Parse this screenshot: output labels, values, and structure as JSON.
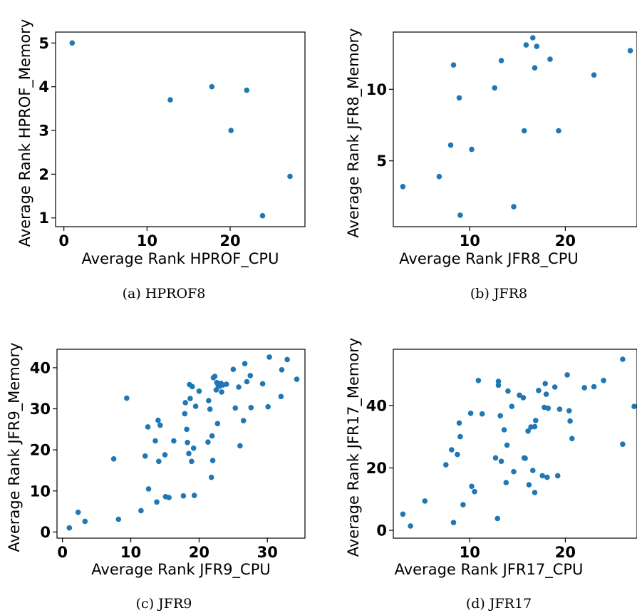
{
  "chart_data": [
    {
      "type": "scatter",
      "xlabel": "Average Rank HPROF_CPU",
      "ylabel": "Average Rank HPROF_Memory",
      "caption": "(a) HPROF8",
      "xlim": [
        -1,
        29
      ],
      "ylim": [
        0.8,
        5.25
      ],
      "xticks": [
        0,
        10,
        20
      ],
      "yticks": [
        1,
        2,
        3,
        4,
        5
      ],
      "color": "#1f77b4",
      "points": [
        [
          1,
          5
        ],
        [
          12.8,
          3.7
        ],
        [
          17.8,
          4.0
        ],
        [
          22,
          3.92
        ],
        [
          20.1,
          3.0
        ],
        [
          27.2,
          1.95
        ],
        [
          23.9,
          1.05
        ]
      ]
    },
    {
      "type": "scatter",
      "xlabel": "Average Rank JFR8_CPU",
      "ylabel": "Average Rank JFR8_Memory",
      "caption": "(b) JFR8",
      "xlim": [
        2,
        27.5
      ],
      "ylim": [
        0.4,
        14
      ],
      "xticks": [
        10,
        20
      ],
      "yticks": [
        5,
        10
      ],
      "color": "#1f77b4",
      "points": [
        [
          3,
          3.2
        ],
        [
          6.8,
          3.9
        ],
        [
          8,
          6.1
        ],
        [
          8.3,
          11.7
        ],
        [
          8.9,
          9.4
        ],
        [
          9,
          1.2
        ],
        [
          10.2,
          5.8
        ],
        [
          12.6,
          10.1
        ],
        [
          13.3,
          12
        ],
        [
          14.6,
          1.8
        ],
        [
          15.7,
          7.1
        ],
        [
          15.9,
          13.1
        ],
        [
          16.6,
          13.6
        ],
        [
          16.8,
          11.5
        ],
        [
          17,
          13
        ],
        [
          18.4,
          12.1
        ],
        [
          19.3,
          7.1
        ],
        [
          23,
          11
        ],
        [
          26.8,
          12.7
        ]
      ]
    },
    {
      "type": "scatter",
      "xlabel": "Average Rank JFR9_CPU",
      "ylabel": "Average Rank JFR9_Memory",
      "caption": "(c) JFR9",
      "xlim": [
        -0.8,
        35.5
      ],
      "ylim": [
        -1.5,
        44.5
      ],
      "xticks": [
        0,
        10,
        20,
        30
      ],
      "yticks": [
        0,
        10,
        20,
        30,
        40
      ],
      "color": "#1f77b4",
      "points": [
        [
          1,
          1
        ],
        [
          2.3,
          4.8
        ],
        [
          3.3,
          2.6
        ],
        [
          7.5,
          17.8
        ],
        [
          8.2,
          3.1
        ],
        [
          9.4,
          32.6
        ],
        [
          11.5,
          5.2
        ],
        [
          12.1,
          18.5
        ],
        [
          12.5,
          25.6
        ],
        [
          12.6,
          10.5
        ],
        [
          13.6,
          22.2
        ],
        [
          13.8,
          7.3
        ],
        [
          14,
          27.2
        ],
        [
          14.1,
          17.2
        ],
        [
          14.3,
          26
        ],
        [
          15,
          18.8
        ],
        [
          15.1,
          8.6
        ],
        [
          15.6,
          8.4
        ],
        [
          16.3,
          22.2
        ],
        [
          17.7,
          8.8
        ],
        [
          17.9,
          28.8
        ],
        [
          18,
          31.5
        ],
        [
          18.2,
          25
        ],
        [
          18.3,
          21.8
        ],
        [
          18.5,
          19.1
        ],
        [
          18.6,
          35.9
        ],
        [
          18.7,
          32.5
        ],
        [
          18.9,
          17.2
        ],
        [
          19,
          35.4
        ],
        [
          19.2,
          20.4
        ],
        [
          19.3,
          8.9
        ],
        [
          19.5,
          30.6
        ],
        [
          20,
          34.3
        ],
        [
          21.3,
          21.9
        ],
        [
          21.4,
          32
        ],
        [
          21.6,
          29.9
        ],
        [
          21.8,
          13.3
        ],
        [
          21.9,
          23.4
        ],
        [
          22,
          17.4
        ],
        [
          22.1,
          37.6
        ],
        [
          22.3,
          37.9
        ],
        [
          22.5,
          34.6
        ],
        [
          22.6,
          36.4
        ],
        [
          22.7,
          26.4
        ],
        [
          22.8,
          35.7
        ],
        [
          23,
          35.5
        ],
        [
          23.2,
          36.2
        ],
        [
          23.3,
          34.1
        ],
        [
          23.5,
          35.8
        ],
        [
          24,
          36
        ],
        [
          25,
          39.6
        ],
        [
          25.3,
          30.2
        ],
        [
          25.8,
          35.3
        ],
        [
          26,
          21
        ],
        [
          26.5,
          27.1
        ],
        [
          26.7,
          41
        ],
        [
          27,
          36.6
        ],
        [
          27.5,
          38.1
        ],
        [
          27.6,
          30.3
        ],
        [
          29.3,
          36.1
        ],
        [
          30.1,
          30.5
        ],
        [
          30.3,
          42.6
        ],
        [
          32,
          33
        ],
        [
          32.1,
          39.5
        ],
        [
          32.9,
          42
        ],
        [
          34.3,
          37.2
        ]
      ]
    },
    {
      "type": "scatter",
      "xlabel": "Average Rank JFR17_CPU",
      "ylabel": "Average Rank JFR17_Memory",
      "caption": "(d) JFR17",
      "xlim": [
        2,
        27.5
      ],
      "ylim": [
        -2.5,
        58
      ],
      "xticks": [
        10,
        20
      ],
      "yticks": [
        0,
        20,
        40
      ],
      "color": "#1f77b4",
      "points": [
        [
          3,
          5.2
        ],
        [
          3.8,
          1.4
        ],
        [
          5.3,
          9.4
        ],
        [
          7.5,
          21
        ],
        [
          8.1,
          25.8
        ],
        [
          8.3,
          2.5
        ],
        [
          8.7,
          24.3
        ],
        [
          8.9,
          34.4
        ],
        [
          9,
          30
        ],
        [
          9.3,
          8.2
        ],
        [
          10.1,
          37.5
        ],
        [
          10.2,
          14.1
        ],
        [
          10.5,
          12.4
        ],
        [
          10.9,
          48
        ],
        [
          11.3,
          37.3
        ],
        [
          12.7,
          23.2
        ],
        [
          12.9,
          3.8
        ],
        [
          13,
          46.5
        ],
        [
          13,
          47.7
        ],
        [
          13.2,
          36.7
        ],
        [
          13.3,
          22.1
        ],
        [
          13.6,
          32.2
        ],
        [
          13.8,
          15.3
        ],
        [
          13.9,
          27.3
        ],
        [
          14,
          44.6
        ],
        [
          14.4,
          39.7
        ],
        [
          14.6,
          18.8
        ],
        [
          15.2,
          43.3
        ],
        [
          15.6,
          42.5
        ],
        [
          15.7,
          23.2
        ],
        [
          15.8,
          23.1
        ],
        [
          16.1,
          31.8
        ],
        [
          16.2,
          14.6
        ],
        [
          16.4,
          33.1
        ],
        [
          16.6,
          19.2
        ],
        [
          16.8,
          12.1
        ],
        [
          16.8,
          33.2
        ],
        [
          16.9,
          35.2
        ],
        [
          17.2,
          44.8
        ],
        [
          17.6,
          17.5
        ],
        [
          17.8,
          39.4
        ],
        [
          17.9,
          47
        ],
        [
          18,
          43.6
        ],
        [
          18.1,
          17
        ],
        [
          18.2,
          39.1
        ],
        [
          18.9,
          45.9
        ],
        [
          19.2,
          17.5
        ],
        [
          19.4,
          38.8
        ],
        [
          20.2,
          49.8
        ],
        [
          20.4,
          38.3
        ],
        [
          20.5,
          35
        ],
        [
          20.7,
          29.4
        ],
        [
          22,
          45.7
        ],
        [
          23,
          46
        ],
        [
          24,
          48
        ],
        [
          26,
          54.8
        ],
        [
          26,
          27.6
        ],
        [
          27.2,
          39.7
        ]
      ]
    }
  ]
}
